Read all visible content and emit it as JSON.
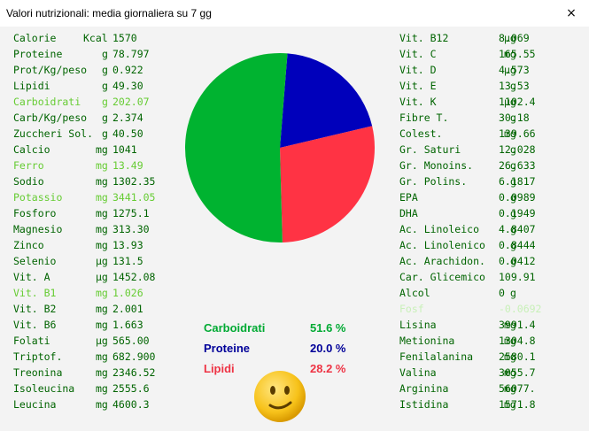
{
  "window": {
    "title": "Valori nutrizionali: media giornaliera su 7 gg",
    "close_glyph": "×"
  },
  "left_column": [
    {
      "name": "Calorie",
      "unit": "Kcal",
      "value": "1570",
      "style": "normal"
    },
    {
      "name": "Proteine",
      "unit": "g",
      "value": "78.797",
      "style": "normal"
    },
    {
      "name": "Prot/Kg/peso",
      "unit": "g",
      "value": "0.922",
      "style": "normal"
    },
    {
      "name": "Lipidi",
      "unit": "g",
      "value": "49.30",
      "style": "normal"
    },
    {
      "name": "Carboidrati",
      "unit": "g",
      "value": "202.07",
      "style": "hl"
    },
    {
      "name": "Carb/Kg/peso",
      "unit": "g",
      "value": "2.374",
      "style": "normal"
    },
    {
      "name": "Zuccheri Sol.",
      "unit": "g",
      "value": "40.50",
      "style": "normal"
    },
    {
      "name": "Calcio",
      "unit": "mg",
      "value": "1041",
      "style": "normal"
    },
    {
      "name": "Ferro",
      "unit": "mg",
      "value": "13.49",
      "style": "hl"
    },
    {
      "name": "Sodio",
      "unit": "mg",
      "value": "1302.35",
      "style": "normal"
    },
    {
      "name": "Potassio",
      "unit": "mg",
      "value": "3441.05",
      "style": "hl"
    },
    {
      "name": "Fosforo",
      "unit": "mg",
      "value": "1275.1",
      "style": "normal"
    },
    {
      "name": "Magnesio",
      "unit": "mg",
      "value": "313.30",
      "style": "normal"
    },
    {
      "name": "Zinco",
      "unit": "mg",
      "value": "13.93",
      "style": "normal"
    },
    {
      "name": "Selenio",
      "unit": "µg",
      "value": "131.5",
      "style": "normal"
    },
    {
      "name": "Vit. A",
      "unit": "µg",
      "value": "1452.08",
      "style": "normal"
    },
    {
      "name": "Vit. B1",
      "unit": "mg",
      "value": "1.026",
      "style": "hl"
    },
    {
      "name": "Vit. B2",
      "unit": "mg",
      "value": "2.001",
      "style": "normal"
    },
    {
      "name": "Vit. B6",
      "unit": "mg",
      "value": "1.663",
      "style": "normal"
    },
    {
      "name": "Folati",
      "unit": "µg",
      "value": "565.00",
      "style": "normal"
    },
    {
      "name": "Triptof.",
      "unit": "mg",
      "value": "682.900",
      "style": "normal"
    },
    {
      "name": "Treonina",
      "unit": "mg",
      "value": "2346.52",
      "style": "normal"
    },
    {
      "name": "Isoleucina",
      "unit": "mg",
      "value": "2555.6",
      "style": "normal"
    },
    {
      "name": "Leucina",
      "unit": "mg",
      "value": "4600.3",
      "style": "normal"
    }
  ],
  "right_column": [
    {
      "name": "Vit. B12",
      "unit": "µg",
      "value": "8.069",
      "style": "normal"
    },
    {
      "name": "Vit. C",
      "unit": "mg",
      "value": "165.55",
      "style": "normal"
    },
    {
      "name": "Vit. D",
      "unit": "µg",
      "value": "4.573",
      "style": "normal"
    },
    {
      "name": "Vit. E",
      "unit": "g",
      "value": "13.53",
      "style": "normal"
    },
    {
      "name": "Vit. K",
      "unit": "µg",
      "value": "1102.4",
      "style": "normal"
    },
    {
      "name": "Fibre T.",
      "unit": "g",
      "value": "30.18",
      "style": "normal"
    },
    {
      "name": "Colest.",
      "unit": "mg",
      "value": "139.66",
      "style": "normal"
    },
    {
      "name": "Gr. Saturi",
      "unit": "g",
      "value": "12.028",
      "style": "normal"
    },
    {
      "name": "Gr. Monoins.",
      "unit": "g",
      "value": "26.633",
      "style": "normal"
    },
    {
      "name": "Gr. Polins.",
      "unit": "g",
      "value": "6.1817",
      "style": "normal"
    },
    {
      "name": "EPA",
      "unit": "g",
      "value": "0.0989",
      "style": "normal"
    },
    {
      "name": "DHA",
      "unit": "g",
      "value": "0.1949",
      "style": "normal"
    },
    {
      "name": "Ac. Linoleico",
      "unit": "g",
      "value": "4.8407",
      "style": "normal"
    },
    {
      "name": "Ac. Linolenico",
      "unit": "g",
      "value": "0.8444",
      "style": "normal"
    },
    {
      "name": "Ac. Arachidon.",
      "unit": "g",
      "value": "0.0412",
      "style": "normal"
    },
    {
      "name": "Car. Glicemico",
      "unit": "",
      "value": "109.91",
      "style": "normal"
    },
    {
      "name": "Alcol",
      "unit": "g",
      "value": "0",
      "style": "normal"
    },
    {
      "name": "Fosf",
      "unit": "",
      "value": "-0.0692",
      "style": "dim"
    },
    {
      "name": "Lisina",
      "unit": "mg",
      "value": "3991.4",
      "style": "normal"
    },
    {
      "name": "Metionina",
      "unit": "mg",
      "value": "1304.8",
      "style": "normal"
    },
    {
      "name": "Fenilalanina",
      "unit": "mg",
      "value": "2580.1",
      "style": "normal"
    },
    {
      "name": "Valina",
      "unit": "mg",
      "value": "3055.7",
      "style": "normal"
    },
    {
      "name": "Arginina",
      "unit": "mg",
      "value": "56077.",
      "style": "normal"
    },
    {
      "name": "Istidina",
      "unit": "mg",
      "value": "1571.8",
      "style": "normal"
    }
  ],
  "legend": [
    {
      "label": "Carboidrati",
      "percent": "51.6 %",
      "color": "#00aa33"
    },
    {
      "label": "Proteine",
      "percent": "20.0 %",
      "color": "#000099"
    },
    {
      "label": "Lipidi",
      "percent": "28.2 %",
      "color": "#ee3344"
    }
  ],
  "chart_data": {
    "type": "pie",
    "slices": [
      {
        "label": "Proteine",
        "value": 20.0,
        "color": "#0000bb"
      },
      {
        "label": "Lipidi",
        "value": 28.2,
        "color": "#ff3344"
      },
      {
        "label": "Carboidrati",
        "value": 51.6,
        "color": "#00b330"
      }
    ],
    "start_angle_deg": 0
  },
  "status_icon": "smiley-face-icon"
}
